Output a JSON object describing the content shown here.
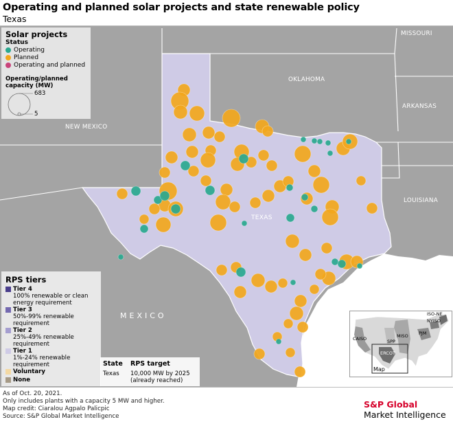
{
  "title": "Operating and planned solar projects and state renewable policy",
  "subtitle": "Texas",
  "map_labels": {
    "missouri": "MISSOURI",
    "oklahoma": "OKLAHOMA",
    "arkansas": "ARKANSAS",
    "new_mexico": "NEW MEXICO",
    "louisiana": "LOUISIANA",
    "texas": "TEXAS",
    "mexico": "MEXICO"
  },
  "legend": {
    "heading": "Solar projects",
    "status_label": "Status",
    "statuses": [
      {
        "label": "Operating",
        "color": "#2aa88f"
      },
      {
        "label": "Planned",
        "color": "#f2a71d"
      },
      {
        "label": "Operating and planned",
        "color": "#c9437a"
      }
    ],
    "capacity_label": "Operating/planned capacity (MW)",
    "capacity_max": "683",
    "capacity_min": "5"
  },
  "rps": {
    "heading": "RPS tiers",
    "tiers": [
      {
        "name": "Tier 4",
        "desc": "100% renewable or clean energy requirement",
        "color": "#4a3e8c"
      },
      {
        "name": "Tier 3",
        "desc": "50%-99% renewable requirement",
        "color": "#7469b0"
      },
      {
        "name": "Tier 2",
        "desc": "25%-49% renewable requirement",
        "color": "#a59ed0"
      },
      {
        "name": "Tier 1",
        "desc": "1%-24% renewable requirement",
        "color": "#cfcbe6"
      },
      {
        "name": "Voluntary",
        "desc": "",
        "color": "#f4d9a3"
      },
      {
        "name": "None",
        "desc": "",
        "color": "#a69a86"
      }
    ]
  },
  "state_table": {
    "state_header": "State",
    "target_header": "RPS target",
    "state": "Texas",
    "target": "10,000 MW by 2025 (already reached)"
  },
  "inset": {
    "labels": [
      "ISO-NE",
      "NYISO",
      "MISO",
      "PJM",
      "SPP",
      "CAISO",
      "ERCOT"
    ],
    "map_label": "Map"
  },
  "footnotes": [
    "As of Oct. 20, 2021.",
    "Only includes plants with a capacity 5 MW and higher.",
    "Map credit: Ciaralou Agpalo Palicpic",
    "Source: S&P Global Market Intelligence"
  ],
  "brand": {
    "line1": "S&P Global",
    "line2": "Market Intelligence"
  },
  "colors": {
    "operating": "#2aa88f",
    "planned": "#f2a71d",
    "texas_fill": "#cdc9e4",
    "land": "#a2a2a2"
  }
}
